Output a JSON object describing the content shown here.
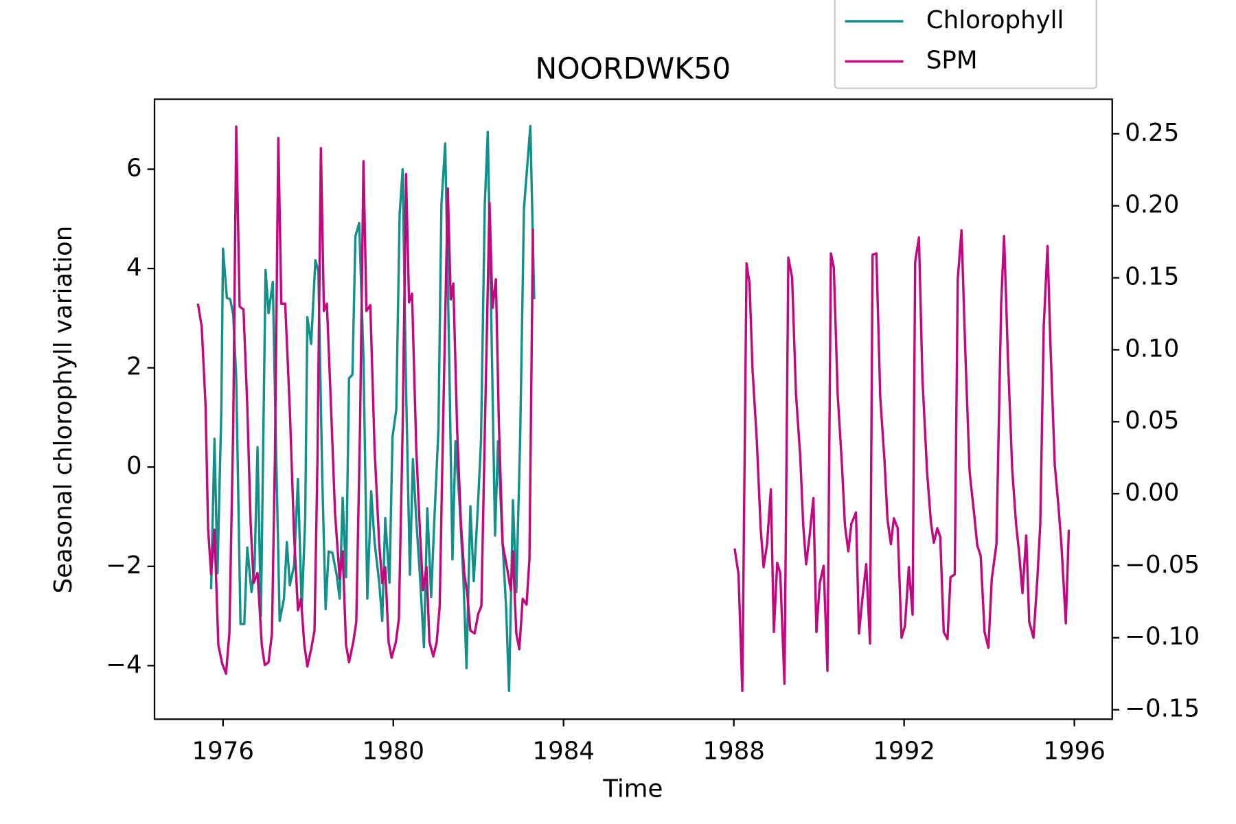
{
  "chart_data": {
    "type": "line",
    "title": "NOORDWK50",
    "xlabel": "Time",
    "ylabel": "Seasonal chlorophyll variation",
    "xlim": [
      1974.39,
      1996.89
    ],
    "xticks": [
      1976,
      1980,
      1984,
      1988,
      1992,
      1996
    ],
    "ylim": [
      -5.08,
      7.41
    ],
    "yticks": [
      {
        "value": -4,
        "label": "−4"
      },
      {
        "value": -2,
        "label": "−2"
      },
      0,
      2,
      4,
      6
    ],
    "y2lim": [
      -0.1566,
      0.274
    ],
    "y2ticks": [
      {
        "value": -0.15,
        "label": "−0.15"
      },
      {
        "value": -0.1,
        "label": "−0.10"
      },
      {
        "value": -0.05,
        "label": "−0.05"
      },
      {
        "value": 0,
        "label": "0.00"
      },
      0.05,
      {
        "value": 0.1,
        "label": "0.10"
      },
      0.15,
      {
        "value": 0.2,
        "label": "0.20"
      },
      0.25
    ],
    "grid": false,
    "legend": "upper right",
    "series": [
      {
        "name": "Chlorophyll",
        "color": "#14908a",
        "x": [
          1975.72,
          1975.8,
          1975.87,
          1975.96,
          1976.0,
          1976.09,
          1976.17,
          1976.24,
          1976.31,
          1976.41,
          1976.5,
          1976.57,
          1976.67,
          1976.74,
          1976.81,
          1976.89,
          1977.0,
          1977.07,
          1977.17,
          1977.24,
          1977.33,
          1977.43,
          1977.5,
          1977.57,
          1977.67,
          1977.76,
          1977.85,
          1977.93,
          1977.98,
          1978.07,
          1978.17,
          1978.24,
          1978.33,
          1978.41,
          1978.48,
          1978.57,
          1978.67,
          1978.74,
          1978.81,
          1978.89,
          1978.96,
          1979.04,
          1979.11,
          1979.2,
          1979.3,
          1979.39,
          1979.48,
          1979.56,
          1979.67,
          1979.74,
          1979.81,
          1979.91,
          1979.98,
          1980.07,
          1980.15,
          1980.22,
          1980.3,
          1980.39,
          1980.46,
          1980.54,
          1980.63,
          1980.72,
          1980.8,
          1980.89,
          1980.96,
          1981.06,
          1981.13,
          1981.22,
          1981.31,
          1981.39,
          1981.46,
          1981.56,
          1981.65,
          1981.72,
          1981.81,
          1981.89,
          1981.98,
          1982.06,
          1982.15,
          1982.22,
          1982.31,
          1982.39,
          1982.46,
          1982.56,
          1982.65,
          1982.72,
          1982.81,
          1982.89,
          1982.98,
          1983.07,
          1983.22,
          1983.31
        ],
        "values": [
          -2.46,
          0.57,
          -2.14,
          1.16,
          4.4,
          3.41,
          3.38,
          3.06,
          1.79,
          -3.16,
          -3.16,
          -1.62,
          -2.52,
          -2.05,
          0.4,
          -3.0,
          3.97,
          3.1,
          3.73,
          0.6,
          -3.1,
          -2.65,
          -1.51,
          -2.38,
          -1.98,
          -0.24,
          -2.86,
          -1.03,
          3.02,
          2.48,
          4.17,
          3.94,
          -0.19,
          -2.86,
          -1.7,
          -1.73,
          -2.17,
          -2.65,
          -0.62,
          -2.22,
          1.79,
          1.86,
          4.65,
          4.92,
          2.19,
          -2.65,
          -0.49,
          -1.51,
          -2.33,
          -3.1,
          -1.03,
          -2.33,
          0.6,
          1.16,
          5.1,
          6.0,
          1.63,
          -2.17,
          0.16,
          -1.06,
          -2.25,
          -3.63,
          -0.83,
          -2.62,
          -1.14,
          0.76,
          5.29,
          6.52,
          2.35,
          -1.86,
          0.52,
          -0.78,
          -2.3,
          -4.05,
          -0.79,
          -2.3,
          -0.9,
          0.52,
          5.29,
          6.75,
          2.59,
          -1.38,
          0.52,
          -1.41,
          -2.81,
          -4.51,
          -0.67,
          -2.52,
          0.6,
          5.21,
          6.87,
          3.38
        ]
      },
      {
        "name": "SPM",
        "color": "#c2087e",
        "axis": "y2",
        "x": [
          1975.41,
          1975.5,
          1975.59,
          1975.65,
          1975.72,
          1975.8,
          1975.89,
          1975.98,
          1976.07,
          1976.15,
          1976.24,
          1976.31,
          1976.39,
          1976.48,
          1976.57,
          1976.65,
          1976.72,
          1976.81,
          1976.91,
          1976.98,
          1977.07,
          1977.15,
          1977.22,
          1977.3,
          1977.37,
          1977.46,
          1977.57,
          1977.67,
          1977.76,
          1977.83,
          1977.91,
          1977.98,
          1978.07,
          1978.15,
          1978.22,
          1978.3,
          1978.37,
          1978.44,
          1978.54,
          1978.63,
          1978.74,
          1978.81,
          1978.89,
          1978.96,
          1979.06,
          1979.13,
          1979.22,
          1979.3,
          1979.37,
          1979.46,
          1979.56,
          1979.67,
          1979.74,
          1979.81,
          1979.89,
          1979.96,
          1980.06,
          1980.13,
          1980.22,
          1980.3,
          1980.37,
          1980.44,
          1980.54,
          1980.63,
          1980.7,
          1980.78,
          1980.85,
          1980.94,
          1981.02,
          1981.09,
          1981.17,
          1981.28,
          1981.35,
          1981.41,
          1981.5,
          1981.59,
          1981.67,
          1981.74,
          1981.81,
          1981.91,
          1982.0,
          1982.07,
          1982.15,
          1982.26,
          1982.33,
          1982.41,
          1982.48,
          1982.57,
          1982.67,
          1982.76,
          1982.81,
          1982.89,
          1982.96,
          1983.04,
          1983.13,
          1983.2,
          1983.28,
          null,
          1988.02,
          1988.11,
          1988.2,
          1988.3,
          1988.37,
          1988.44,
          1988.54,
          1988.63,
          1988.7,
          1988.78,
          1988.87,
          1988.94,
          1989.02,
          1989.09,
          1989.19,
          1989.28,
          1989.37,
          1989.46,
          1989.56,
          1989.63,
          1989.7,
          1989.78,
          1989.87,
          1989.94,
          1990.02,
          1990.11,
          1990.2,
          1990.28,
          1990.35,
          1990.44,
          1990.54,
          1990.61,
          1990.69,
          1990.76,
          1990.87,
          1990.94,
          1991.02,
          1991.11,
          1991.2,
          1991.26,
          1991.35,
          1991.44,
          1991.54,
          1991.61,
          1991.69,
          1991.76,
          1991.85,
          1991.94,
          1992.02,
          1992.11,
          1992.2,
          1992.26,
          1992.35,
          1992.43,
          1992.54,
          1992.63,
          1992.7,
          1992.78,
          1992.85,
          1992.93,
          1993.02,
          1993.09,
          1993.19,
          1993.26,
          1993.35,
          1993.44,
          1993.54,
          1993.65,
          1993.72,
          1993.8,
          1993.89,
          1993.98,
          1994.06,
          1994.17,
          1994.28,
          1994.35,
          1994.44,
          1994.54,
          1994.63,
          1994.7,
          1994.78,
          1994.87,
          1994.94,
          1995.04,
          1995.13,
          1995.2,
          1995.28,
          1995.37,
          1995.44,
          1995.54,
          1995.63,
          1995.7,
          1995.8,
          1995.87
        ],
        "values": [
          0.132,
          0.116,
          0.061,
          -0.024,
          -0.056,
          -0.025,
          -0.105,
          -0.118,
          -0.125,
          -0.097,
          0.048,
          0.255,
          0.13,
          0.128,
          0.061,
          -0.021,
          -0.062,
          -0.055,
          -0.105,
          -0.119,
          -0.117,
          -0.097,
          0.026,
          0.247,
          0.132,
          0.132,
          0.058,
          -0.029,
          -0.081,
          -0.073,
          -0.105,
          -0.12,
          -0.108,
          -0.095,
          0.026,
          0.24,
          0.127,
          0.132,
          0.058,
          -0.013,
          -0.059,
          -0.04,
          -0.105,
          -0.117,
          -0.103,
          -0.089,
          0.048,
          0.231,
          0.127,
          0.131,
          0.031,
          -0.035,
          -0.062,
          -0.051,
          -0.103,
          -0.114,
          -0.103,
          -0.087,
          0.045,
          0.222,
          0.133,
          0.139,
          0.031,
          -0.029,
          -0.067,
          -0.051,
          -0.103,
          -0.113,
          -0.103,
          -0.078,
          0.048,
          0.212,
          0.135,
          0.146,
          0.045,
          -0.021,
          -0.056,
          -0.07,
          -0.095,
          -0.097,
          -0.083,
          -0.078,
          0.042,
          0.202,
          0.129,
          0.149,
          0.048,
          -0.035,
          -0.051,
          -0.067,
          -0.04,
          -0.097,
          -0.108,
          -0.073,
          -0.077,
          -0.045,
          0.184,
          null,
          -0.038,
          -0.056,
          -0.137,
          0.16,
          0.146,
          0.086,
          0.037,
          -0.024,
          -0.051,
          -0.035,
          0.003,
          -0.096,
          -0.048,
          -0.055,
          -0.132,
          0.164,
          0.15,
          0.069,
          0.026,
          -0.022,
          -0.049,
          -0.029,
          -0.003,
          -0.096,
          -0.062,
          -0.05,
          -0.123,
          0.167,
          0.157,
          0.069,
          0.02,
          -0.022,
          -0.04,
          -0.021,
          -0.013,
          -0.097,
          -0.073,
          -0.049,
          -0.104,
          0.166,
          0.167,
          0.067,
          0.023,
          -0.018,
          -0.035,
          -0.017,
          -0.024,
          -0.1,
          -0.092,
          -0.051,
          -0.084,
          0.161,
          0.178,
          0.08,
          0.015,
          -0.02,
          -0.034,
          -0.024,
          -0.03,
          -0.096,
          -0.101,
          -0.058,
          -0.056,
          0.149,
          0.183,
          0.097,
          0.015,
          -0.015,
          -0.036,
          -0.043,
          -0.096,
          -0.107,
          -0.059,
          -0.035,
          0.132,
          0.179,
          0.094,
          0.017,
          -0.021,
          -0.04,
          -0.069,
          -0.029,
          -0.089,
          -0.1,
          -0.059,
          -0.021,
          0.116,
          0.172,
          0.102,
          0.02,
          -0.01,
          -0.037,
          -0.09,
          -0.025
        ]
      }
    ]
  }
}
